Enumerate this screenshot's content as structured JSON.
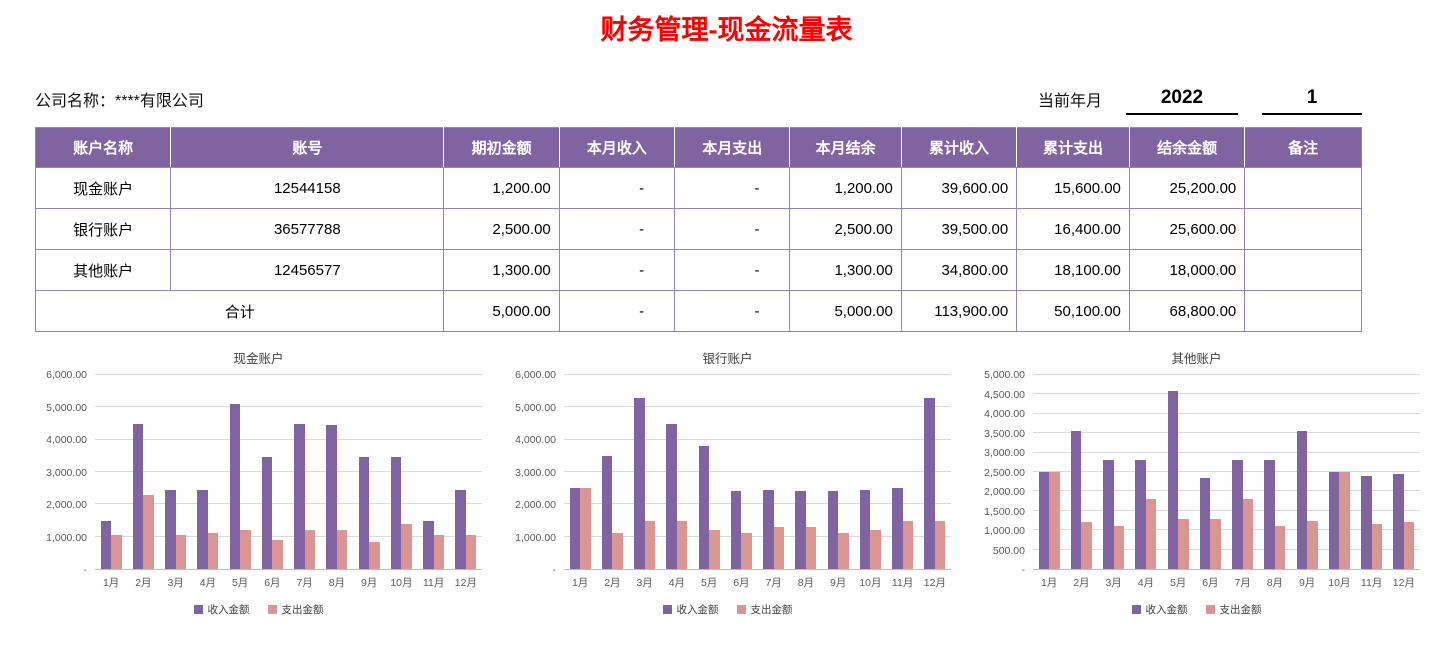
{
  "page": {
    "title": "财务管理-现金流量表"
  },
  "info": {
    "company": "公司名称：****有限公司",
    "period_label": "当前年月",
    "year": "2022",
    "month": "1"
  },
  "table": {
    "headers": [
      "账户名称",
      "账号",
      "期初金额",
      "本月收入",
      "本月支出",
      "本月结余",
      "累计收入",
      "累计支出",
      "结余金额",
      "备注"
    ],
    "rows": [
      {
        "cells": [
          "现金账户",
          "12544158",
          "1,200.00",
          "-",
          "-",
          "1,200.00",
          "39,600.00",
          "15,600.00",
          "25,200.00",
          ""
        ]
      },
      {
        "cells": [
          "银行账户",
          "36577788",
          "2,500.00",
          "-",
          "-",
          "2,500.00",
          "39,500.00",
          "16,400.00",
          "25,600.00",
          ""
        ]
      },
      {
        "cells": [
          "其他账户",
          "12456577",
          "1,300.00",
          "-",
          "-",
          "1,300.00",
          "34,800.00",
          "18,100.00",
          "18,000.00",
          ""
        ]
      }
    ],
    "total": {
      "label": "合计",
      "cells": [
        "5,000.00",
        "-",
        "-",
        "5,000.00",
        "113,900.00",
        "50,100.00",
        "68,800.00",
        ""
      ]
    }
  },
  "colors": {
    "title_red": "#FF0000",
    "header_bg": "#8064A2",
    "table_border": "#9282B5",
    "income_bar": "#8064A2",
    "expense_bar": "#D99694"
  },
  "chart_data": [
    {
      "type": "bar",
      "title": "现金账户",
      "categories": [
        "1月",
        "2月",
        "3月",
        "4月",
        "5月",
        "6月",
        "7月",
        "8月",
        "9月",
        "10月",
        "11月",
        "12月"
      ],
      "series": [
        {
          "name": "收入金额",
          "color": "#8064A2",
          "values": [
            1500,
            4500,
            2450,
            2450,
            5100,
            3450,
            4500,
            4450,
            3450,
            3450,
            1500,
            2450
          ]
        },
        {
          "name": "支出金额",
          "color": "#D99694",
          "values": [
            1050,
            2300,
            1050,
            1100,
            1200,
            900,
            1200,
            1200,
            850,
            1400,
            1050,
            1050
          ]
        }
      ],
      "ylim": [
        0,
        6000
      ],
      "ytick_step": 1000,
      "ytick_labels": [
        "-",
        "1,000.00",
        "2,000.00",
        "3,000.00",
        "4,000.00",
        "5,000.00",
        "6,000.00"
      ],
      "grid": true,
      "legend_position": "bottom"
    },
    {
      "type": "bar",
      "title": "银行账户",
      "categories": [
        "1月",
        "2月",
        "3月",
        "4月",
        "5月",
        "6月",
        "7月",
        "8月",
        "9月",
        "10月",
        "11月",
        "12月"
      ],
      "series": [
        {
          "name": "收入金额",
          "color": "#8064A2",
          "values": [
            2500,
            3500,
            5300,
            4500,
            3800,
            2400,
            2450,
            2400,
            2400,
            2450,
            2500,
            5300
          ]
        },
        {
          "name": "支出金额",
          "color": "#D99694",
          "values": [
            2500,
            1100,
            1500,
            1500,
            1200,
            1100,
            1300,
            1300,
            1100,
            1200,
            1500,
            1500
          ]
        }
      ],
      "ylim": [
        0,
        6000
      ],
      "ytick_step": 1000,
      "ytick_labels": [
        "-",
        "1,000.00",
        "2,000.00",
        "3,000.00",
        "4,000.00",
        "5,000.00",
        "6,000.00"
      ],
      "grid": true,
      "legend_position": "bottom"
    },
    {
      "type": "bar",
      "title": "其他账户",
      "categories": [
        "1月",
        "2月",
        "3月",
        "4月",
        "5月",
        "6月",
        "7月",
        "8月",
        "9月",
        "10月",
        "11月",
        "12月"
      ],
      "series": [
        {
          "name": "收入金额",
          "color": "#8064A2",
          "values": [
            2500,
            3550,
            2800,
            2800,
            4600,
            2350,
            2800,
            2800,
            3550,
            2500,
            2400,
            2450
          ]
        },
        {
          "name": "支出金额",
          "color": "#D99694",
          "values": [
            2500,
            1200,
            1100,
            1800,
            1300,
            1300,
            1800,
            1100,
            1250,
            2500,
            1150,
            1200
          ]
        }
      ],
      "ylim": [
        0,
        5000
      ],
      "ytick_step": 500,
      "ytick_labels": [
        "-",
        "500.00",
        "1,000.00",
        "1,500.00",
        "2,000.00",
        "2,500.00",
        "3,000.00",
        "3,500.00",
        "4,000.00",
        "4,500.00",
        "5,000.00"
      ],
      "grid": true,
      "legend_position": "bottom"
    }
  ]
}
